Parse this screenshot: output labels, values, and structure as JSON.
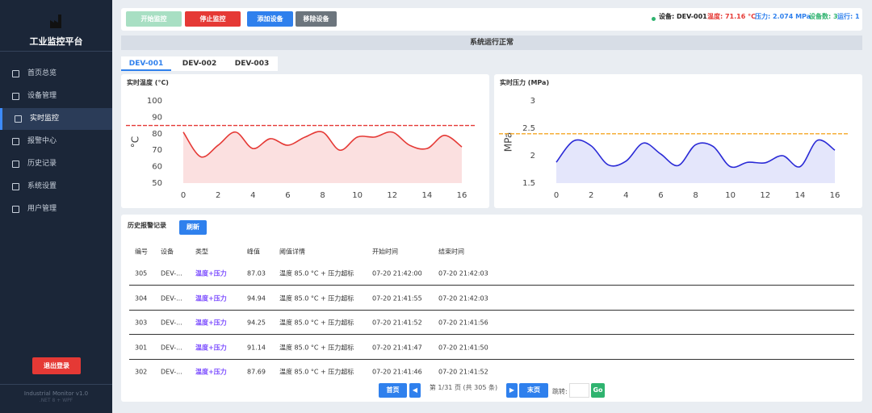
{
  "sidebar": {
    "title": "工业监控平台",
    "menu": [
      "首页总览",
      "设备管理",
      "实时监控",
      "报警中心",
      "历史记录",
      "系统设置",
      "用户管理"
    ],
    "active": 2,
    "logout": "退出登录",
    "footer": [
      "Industrial Monitor v1.0",
      ".NET 8 + WPF"
    ]
  },
  "toolbar": {
    "buttons": [
      "开始监控",
      "停止监控",
      "添加设备",
      "移除设备"
    ],
    "status": {
      "device": "设备: DEV-001",
      "temperature": "温度: 71.16 °C",
      "pressure": "压力: 2.074 MPa",
      "device_count": "设备数: 3",
      "running": "运行: 1"
    }
  },
  "banner": "系统运行正常",
  "tabs": [
    "DEV-001",
    "DEV-002",
    "DEV-003"
  ],
  "charts": [
    {
      "type": "line",
      "title": "实时温度 (°C)",
      "y_label": "°C",
      "x": [
        0,
        1,
        2,
        3,
        4,
        5,
        6,
        7,
        8,
        9,
        10,
        11,
        12,
        13,
        14,
        15,
        16
      ],
      "values": [
        81,
        66,
        73,
        81,
        71,
        77,
        73,
        78,
        81,
        70,
        78,
        78,
        81,
        73,
        71,
        79,
        72
      ],
      "xlim": [
        0,
        16
      ],
      "xticks": [
        0,
        2,
        4,
        6,
        8,
        10,
        12,
        14,
        16
      ],
      "ylim": [
        50,
        100
      ],
      "yticks": [
        50,
        60,
        70,
        80,
        90,
        100
      ],
      "threshold": 85,
      "color": "#e53935",
      "fill": "#fbe0e0",
      "threshold_color": "#e53935"
    },
    {
      "type": "line",
      "title": "实时压力 (MPa)",
      "y_label": "MPa",
      "x": [
        0,
        1,
        2,
        3,
        4,
        5,
        6,
        7,
        8,
        9,
        10,
        11,
        12,
        13,
        14,
        15,
        16
      ],
      "values": [
        1.88,
        2.27,
        2.18,
        1.83,
        1.9,
        2.23,
        2.03,
        1.82,
        2.2,
        2.17,
        1.8,
        1.88,
        1.87,
        2.0,
        1.8,
        2.28,
        2.1
      ],
      "xlim": [
        0,
        16
      ],
      "xticks": [
        0,
        2,
        4,
        6,
        8,
        10,
        12,
        14,
        16
      ],
      "ylim": [
        1.5,
        3
      ],
      "yticks": [
        1.5,
        2,
        2.5,
        3
      ],
      "threshold": 2.4,
      "color": "#2a2ad6",
      "fill": "#e4e6fb",
      "threshold_color": "#f5a623"
    }
  ],
  "alarms": {
    "title": "历史报警记录",
    "refresh": "刷新",
    "columns": [
      "编号",
      "设备",
      "类型",
      "峰值",
      "阈值详情",
      "开始时间",
      "结束时间"
    ],
    "rows": [
      [
        "305",
        "DEV-...",
        "温度+压力",
        "87.03",
        "温度 85.0 °C + 压力超标",
        "07-20 21:42:00",
        "07-20 21:42:03"
      ],
      [
        "304",
        "DEV-...",
        "温度+压力",
        "94.94",
        "温度 85.0 °C + 压力超标",
        "07-20 21:41:55",
        "07-20 21:42:03"
      ],
      [
        "303",
        "DEV-...",
        "温度+压力",
        "94.25",
        "温度 85.0 °C + 压力超标",
        "07-20 21:41:52",
        "07-20 21:41:56"
      ],
      [
        "301",
        "DEV-...",
        "温度+压力",
        "91.14",
        "温度 85.0 °C + 压力超标",
        "07-20 21:41:47",
        "07-20 21:41:50"
      ],
      [
        "302",
        "DEV-...",
        "温度+压力",
        "87.69",
        "温度 85.0 °C + 压力超标",
        "07-20 21:41:46",
        "07-20 21:41:52"
      ]
    ]
  },
  "pagination": {
    "first": "首页",
    "info": "第 1/31 页 (共 305 条)",
    "last": "末页",
    "jump": "跳转:",
    "go": "Go"
  }
}
